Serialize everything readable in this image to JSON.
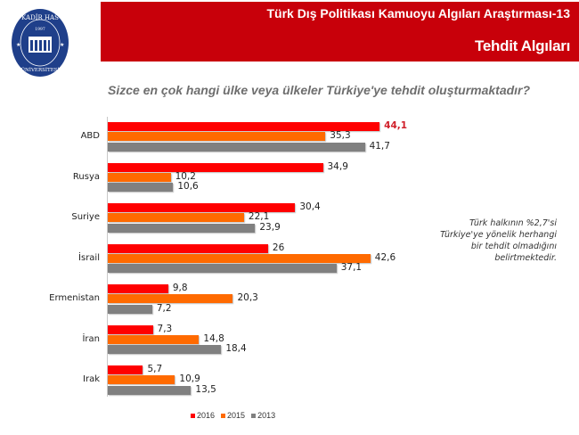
{
  "header": {
    "logo": {
      "name": "KADİR HAS ÜNİVERSİTESİ",
      "year": "1997"
    },
    "survey_title": "Türk Dış Politikası  Kamuoyu Algıları  Araştırması-13",
    "section_title": "Tehdit Algıları",
    "banner_color": "#c8000a"
  },
  "note": "Türk halkının %2,7'si Türkiye'ye yönelik herhangi bir tehdit olmadığını belirtmektedir.",
  "chart_data": {
    "type": "bar",
    "orientation": "horizontal",
    "title": "Sizce en çok hangi ülke veya ülkeler Türkiye'ye tehdit oluşturmaktadır?",
    "xlabel": "",
    "ylabel": "",
    "categories": [
      "ABD",
      "Rusya",
      "Suriye",
      "İsrail",
      "Ermenistan",
      "İran",
      "Irak"
    ],
    "series": [
      {
        "name": "2016",
        "color": "#ff0000",
        "values": [
          44.1,
          34.9,
          30.4,
          26,
          9.8,
          7.3,
          5.7
        ]
      },
      {
        "name": "2015",
        "color": "#ff6a00",
        "values": [
          35.3,
          10.2,
          22.1,
          42.6,
          20.3,
          14.8,
          10.9
        ]
      },
      {
        "name": "2013",
        "color": "#808080",
        "values": [
          41.7,
          10.6,
          23.9,
          37.1,
          7.2,
          18.4,
          13.5
        ]
      }
    ],
    "value_labels": {
      "2016": [
        "44,1",
        "34,9",
        "30,4",
        "26",
        "9,8",
        "7,3",
        "5,7"
      ],
      "2015": [
        "35,3",
        "10,2",
        "22,1",
        "42,6",
        "20,3",
        "14,8",
        "10,9"
      ],
      "2013": [
        "41,7",
        "10,6",
        "23,9",
        "37,1",
        "7,2",
        "18,4",
        "13,5"
      ]
    },
    "highlighted_label": "44,1",
    "grid": false,
    "legend_position": "bottom",
    "xlim": [
      0,
      45
    ]
  }
}
